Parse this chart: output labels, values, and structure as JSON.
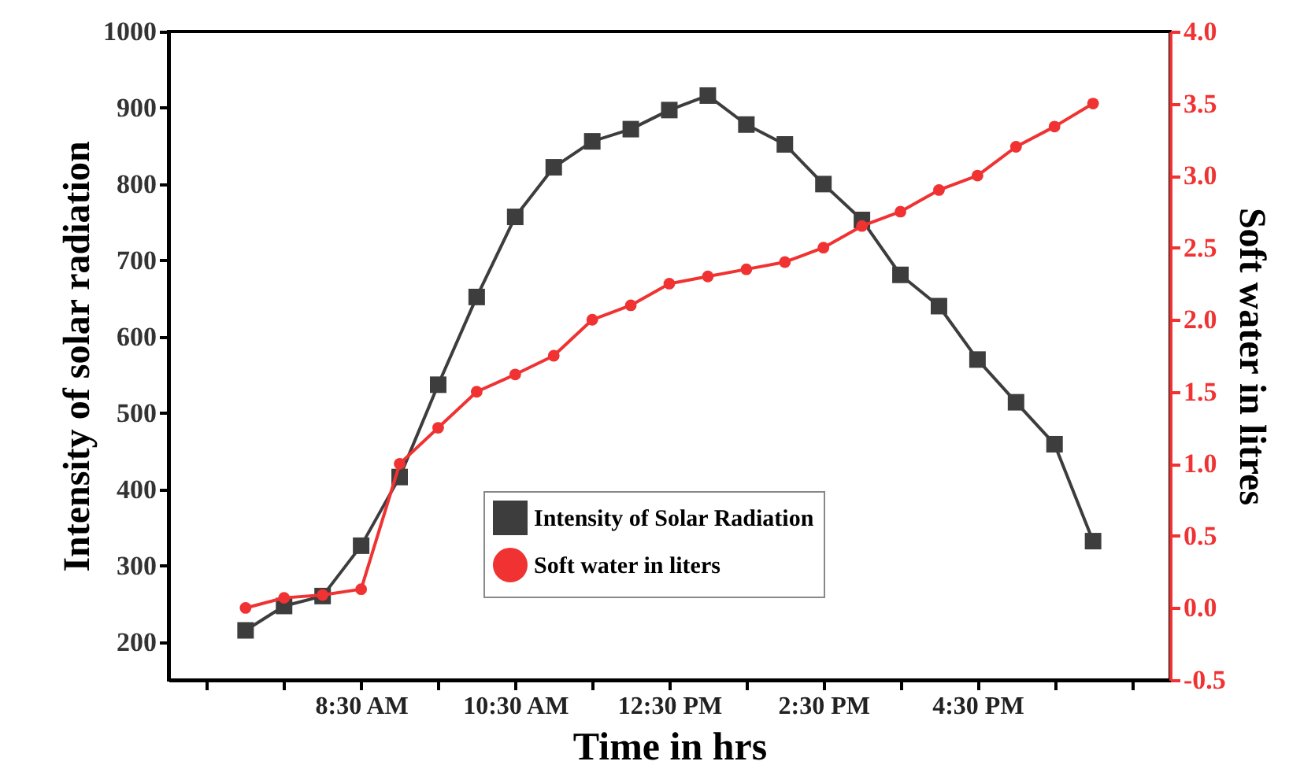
{
  "chart_data": {
    "type": "line",
    "xlabel": "Time in hrs",
    "ylabel": "Intensity of solar radiation",
    "y2label": "Soft water in litres",
    "x": [
      7,
      7.5,
      8,
      8.5,
      9,
      9.5,
      10,
      10.5,
      11,
      11.5,
      12,
      12.5,
      13,
      13.5,
      14,
      14.5,
      15,
      15.5,
      16,
      16.5,
      17,
      17.5,
      18
    ],
    "xlim": [
      6,
      19
    ],
    "xticks": [
      {
        "value": 6.5,
        "label": null
      },
      {
        "value": 7.5,
        "label": null
      },
      {
        "value": 8.5,
        "label": "8:30 AM"
      },
      {
        "value": 9.5,
        "label": null
      },
      {
        "value": 10.5,
        "label": "10:30 AM"
      },
      {
        "value": 11.5,
        "label": null
      },
      {
        "value": 12.5,
        "label": "12:30 PM"
      },
      {
        "value": 13.5,
        "label": null
      },
      {
        "value": 14.5,
        "label": "2:30 PM"
      },
      {
        "value": 15.5,
        "label": null
      },
      {
        "value": 16.5,
        "label": "4:30 PM"
      },
      {
        "value": 17.5,
        "label": null
      },
      {
        "value": 18.5,
        "label": null
      }
    ],
    "ylim": [
      150,
      1000
    ],
    "yticks": [
      200,
      300,
      400,
      500,
      600,
      700,
      800,
      900,
      1000
    ],
    "y2lim": [
      -0.5,
      4.0
    ],
    "y2ticks": [
      {
        "value": -0.5,
        "label": "-0.5"
      },
      {
        "value": 0,
        "label": "0.0"
      },
      {
        "value": 0.5,
        "label": "0.5"
      },
      {
        "value": 1,
        "label": "1.0"
      },
      {
        "value": 1.5,
        "label": "1.5"
      },
      {
        "value": 2,
        "label": "2.0"
      },
      {
        "value": 2.5,
        "label": "2.5"
      },
      {
        "value": 3,
        "label": "3.0"
      },
      {
        "value": 3.5,
        "label": "3.5"
      },
      {
        "value": 4,
        "label": "4.0"
      }
    ],
    "series": [
      {
        "name": "Intensity of Solar Radiation",
        "color": "#3d3d3d",
        "marker": "square",
        "values": [
          215,
          247,
          260,
          326,
          416,
          537,
          652,
          757,
          822,
          856,
          872,
          897,
          916,
          878,
          852,
          800,
          753,
          681,
          640,
          570,
          514,
          459,
          332
        ]
      },
      {
        "name": "Soft water in liters",
        "color": "#f03232",
        "marker": "circle",
        "axis": "y2",
        "values": [
          0.0,
          0.07,
          0.09,
          0.13,
          1.0,
          1.25,
          1.5,
          1.62,
          1.75,
          2.0,
          2.1,
          2.25,
          2.3,
          2.35,
          2.4,
          2.5,
          2.65,
          2.75,
          2.9,
          3.0,
          3.2,
          3.34,
          3.5
        ]
      }
    ],
    "grid": false,
    "legend": "bottom",
    "line_style": "solid"
  }
}
